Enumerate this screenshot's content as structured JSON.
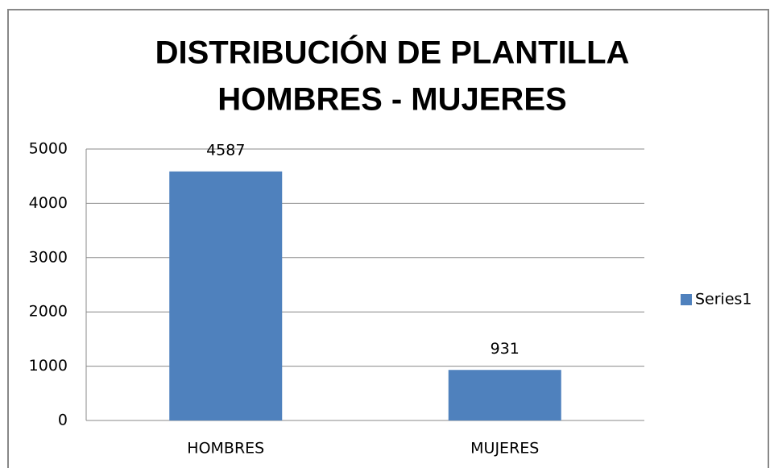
{
  "chart_data": {
    "type": "bar",
    "title": [
      "DISTRIBUCIÓN DE PLANTILLA",
      "HOMBRES - MUJERES"
    ],
    "categories": [
      "HOMBRES",
      "MUJERES"
    ],
    "series": [
      {
        "name": "Series1",
        "color": "#4f81bd",
        "values": [
          4587,
          931
        ]
      }
    ],
    "ylim": [
      0,
      5000
    ],
    "yticks": [
      0,
      1000,
      2000,
      3000,
      4000,
      5000
    ],
    "grid": true,
    "legend": "right",
    "data_labels": true
  }
}
